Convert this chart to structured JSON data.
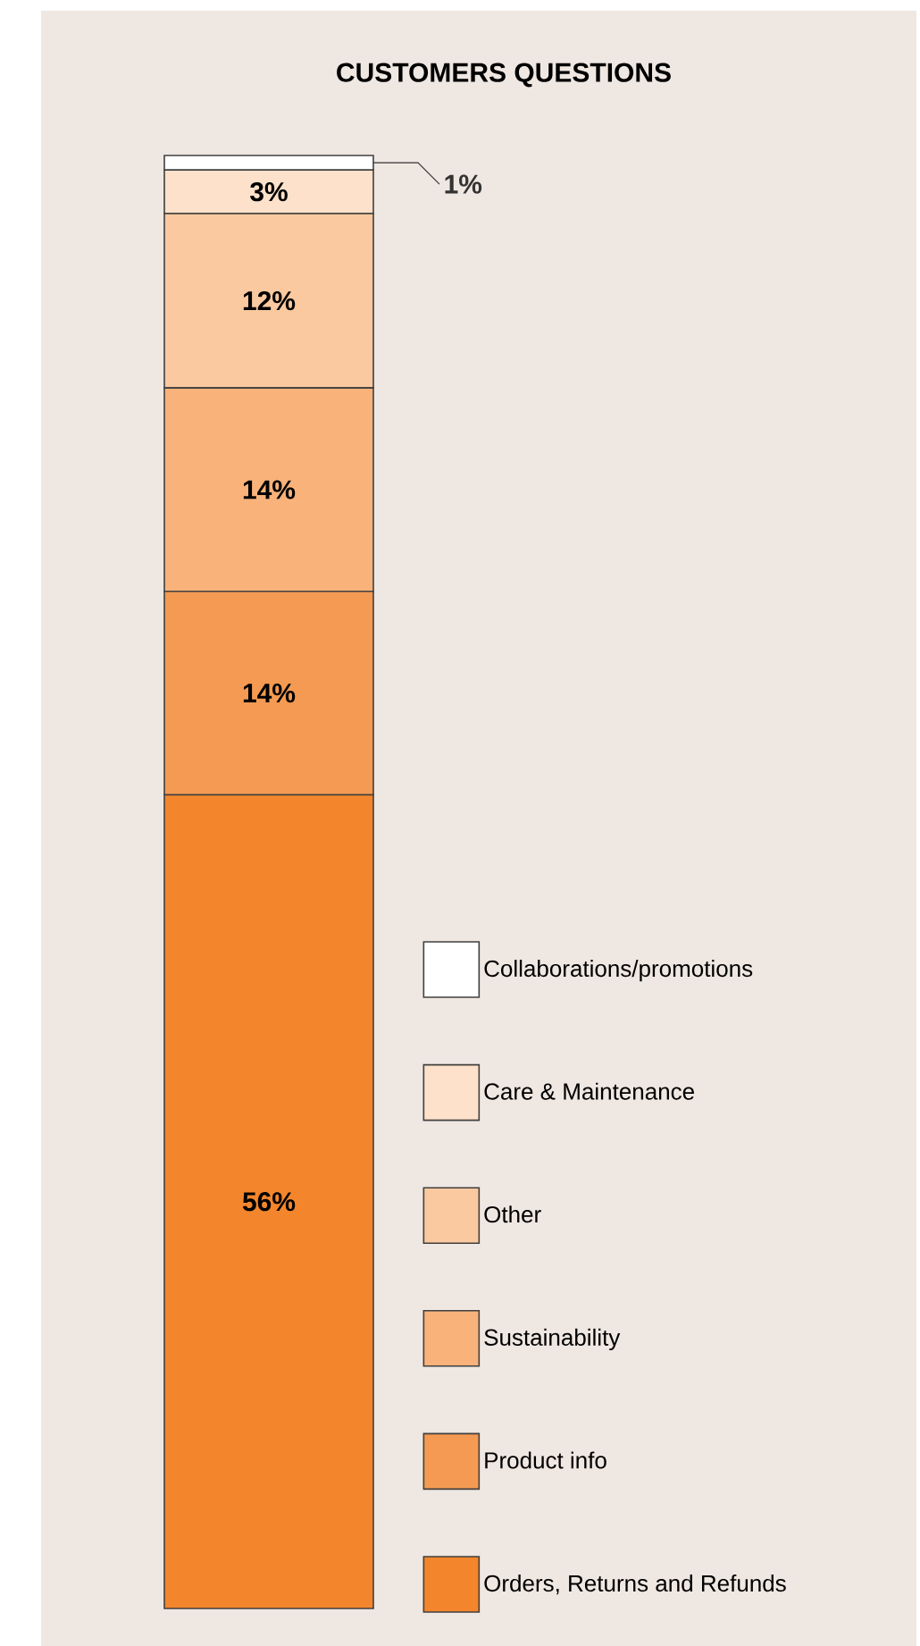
{
  "chart_data": {
    "type": "bar",
    "title": "CUSTOMERS QUESTIONS",
    "stacked": true,
    "categories": [
      null
    ],
    "legend": "bottom right",
    "series": [
      {
        "name": "Orders, Returns and Refunds",
        "color": "#f3862c",
        "values": [
          56
        ],
        "value_labels": [
          "56%"
        ]
      },
      {
        "name": "Product info",
        "color": "#f49a52",
        "values": [
          14
        ],
        "value_labels": [
          "14%"
        ]
      },
      {
        "name": "Sustainability",
        "color": "#f8b27a",
        "values": [
          14
        ],
        "value_labels": [
          "14%"
        ]
      },
      {
        "name": "Other",
        "color": "#fbc99f",
        "values": [
          12
        ],
        "value_labels": [
          "12%"
        ]
      },
      {
        "name": "Care & Maintenance",
        "color": "#fde1ca",
        "values": [
          3
        ],
        "value_labels": [
          "3%"
        ]
      },
      {
        "name": "Collaborations/promotions",
        "color": "#ffffff",
        "values": [
          1
        ],
        "value_labels": [
          "1%"
        ]
      }
    ]
  }
}
